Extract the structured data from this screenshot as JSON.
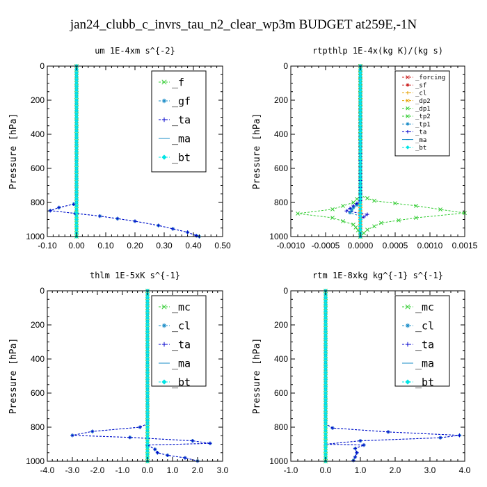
{
  "figure": {
    "title": "jan24_clubb_c_invrs_tau_n2_clear_wp3m  BUDGET at259E,-1N"
  },
  "chart_data": [
    {
      "type": "line",
      "title": "um  1E-4xm s^{-2}",
      "ylabel": "Pressure [hPa]",
      "xlim": [
        -0.1,
        0.5
      ],
      "ylim": [
        1000,
        0
      ],
      "xticks": [
        "-0.10",
        "0.00",
        "0.10",
        "0.20",
        "0.30",
        "0.40",
        "0.50"
      ],
      "xtick_values": [
        -0.1,
        0.0,
        0.1,
        0.2,
        0.3,
        0.4,
        0.5
      ],
      "yticks": [
        "0",
        "200",
        "400",
        "600",
        "800",
        "1000"
      ],
      "ytick_values": [
        0,
        200,
        400,
        600,
        800,
        1000
      ],
      "legend_position": "top-right",
      "legend_size": "large",
      "series": [
        {
          "name": "_f",
          "color": "#33cc33",
          "marker": "x",
          "points": [
            [
              0.0,
              0
            ],
            [
              0.0,
              100
            ],
            [
              0.0,
              200
            ],
            [
              0.0,
              300
            ],
            [
              0.0,
              400
            ],
            [
              0.0,
              500
            ],
            [
              0.0,
              600
            ],
            [
              0.0,
              700
            ],
            [
              0.0,
              800
            ],
            [
              0.0,
              900
            ],
            [
              0.0,
              1000
            ]
          ]
        },
        {
          "name": "_gf",
          "color": "#1a8cc7",
          "marker": "star",
          "points": [
            [
              0.0,
              0
            ],
            [
              0.0,
              500
            ],
            [
              0.0,
              800
            ],
            [
              -0.01,
              810
            ],
            [
              -0.06,
              830
            ],
            [
              -0.09,
              848
            ],
            [
              0.08,
              880
            ],
            [
              0.2,
              910
            ],
            [
              0.28,
              935
            ],
            [
              0.33,
              955
            ],
            [
              0.38,
              975
            ],
            [
              0.41,
              995
            ],
            [
              0.42,
              1000
            ]
          ]
        },
        {
          "name": "_ta",
          "color": "#0000cc",
          "marker": "plus",
          "points": [
            [
              0.0,
              0
            ],
            [
              0.0,
              500
            ],
            [
              0.0,
              800
            ],
            [
              -0.01,
              810
            ],
            [
              -0.06,
              830
            ],
            [
              -0.09,
              848
            ],
            [
              0.08,
              880
            ],
            [
              0.2,
              910
            ],
            [
              0.28,
              935
            ],
            [
              0.33,
              955
            ],
            [
              0.38,
              975
            ],
            [
              0.41,
              995
            ],
            [
              0.42,
              1000
            ]
          ]
        },
        {
          "name": "_ma",
          "color": "#1a8cc7",
          "marker": "dash",
          "points": [
            [
              0.0,
              0
            ],
            [
              0.0,
              1000
            ]
          ]
        },
        {
          "name": "_bt",
          "color": "#00e5e5",
          "marker": "diamond",
          "points": [
            [
              0.0,
              0
            ],
            [
              0.0,
              1000
            ]
          ]
        }
      ]
    },
    {
      "type": "line",
      "title": "rtpthlp  1E-4x(kg K)/(kg s)",
      "ylabel": "Pressure [hPa]",
      "xlim": [
        -0.001,
        0.0015
      ],
      "ylim": [
        1000,
        0
      ],
      "xticks": [
        "-0.0010",
        "-0.0005",
        "0.0000",
        "0.0005",
        "0.0010",
        "0.0015"
      ],
      "xtick_values": [
        -0.001,
        -0.0005,
        0.0,
        0.0005,
        0.001,
        0.0015
      ],
      "yticks": [
        "0",
        "200",
        "400",
        "600",
        "800",
        "1000"
      ],
      "ytick_values": [
        0,
        200,
        400,
        600,
        800,
        1000
      ],
      "legend_position": "top-right",
      "legend_size": "small",
      "series": [
        {
          "name": "_forcing",
          "color": "#cc2222",
          "marker": "x",
          "points": [
            [
              0.0,
              0
            ],
            [
              0.0,
              1000
            ]
          ]
        },
        {
          "name": "_sf",
          "color": "#cc2222",
          "marker": "star",
          "points": [
            [
              0.0,
              0
            ],
            [
              0.0,
              1000
            ]
          ]
        },
        {
          "name": "_cl",
          "color": "#e5a000",
          "marker": "plus",
          "points": [
            [
              0.0,
              0
            ],
            [
              0.0,
              1000
            ]
          ]
        },
        {
          "name": "_dp2",
          "color": "#e5a000",
          "marker": "x",
          "points": [
            [
              0.0,
              0
            ],
            [
              0.0,
              1000
            ]
          ]
        },
        {
          "name": "_dp1",
          "color": "#33cc33",
          "marker": "x",
          "points": [
            [
              0.0,
              0
            ],
            [
              0.0,
              760
            ],
            [
              -0.0001,
              800
            ],
            [
              -0.0004,
              840
            ],
            [
              -0.0009,
              865
            ],
            [
              -0.0004,
              890
            ],
            [
              -0.0001,
              930
            ],
            [
              0.0,
              980
            ],
            [
              0.0,
              1000
            ]
          ]
        },
        {
          "name": "_tp2",
          "color": "#33cc33",
          "marker": "x",
          "points": [
            [
              0.0,
              0
            ],
            [
              0.0,
              760
            ],
            [
              0.0002,
              790
            ],
            [
              0.0008,
              820
            ],
            [
              0.0015,
              862
            ],
            [
              0.0008,
              890
            ],
            [
              0.0003,
              920
            ],
            [
              0.0001,
              960
            ],
            [
              0.0,
              1000
            ]
          ]
        },
        {
          "name": "_tp1",
          "color": "#1a8cc7",
          "marker": "star",
          "points": [
            [
              0.0,
              0
            ],
            [
              0.0,
              800
            ],
            [
              -0.0001,
              830
            ],
            [
              -0.00015,
              860
            ],
            [
              0.0,
              880
            ],
            [
              0.0,
              1000
            ]
          ]
        },
        {
          "name": "_ta",
          "color": "#0000cc",
          "marker": "plus",
          "points": [
            [
              0.0,
              0
            ],
            [
              0.0,
              790
            ],
            [
              -0.0001,
              820
            ],
            [
              -0.0002,
              850
            ],
            [
              0.0001,
              870
            ],
            [
              0.0,
              900
            ],
            [
              0.0,
              1000
            ]
          ]
        },
        {
          "name": "_ma",
          "color": "#1a8cc7",
          "marker": "dash",
          "points": [
            [
              0.0,
              0
            ],
            [
              0.0,
              1000
            ]
          ]
        },
        {
          "name": "_bt",
          "color": "#00e5e5",
          "marker": "diamond",
          "points": [
            [
              0.0,
              0
            ],
            [
              0.0,
              1000
            ]
          ]
        }
      ]
    },
    {
      "type": "line",
      "title": "thlm  1E-5xK s^{-1}",
      "ylabel": "Pressure [hPa]",
      "xlim": [
        -4.0,
        3.0
      ],
      "ylim": [
        1000,
        0
      ],
      "xticks": [
        "-4.0",
        "-3.0",
        "-2.0",
        "-1.0",
        "0.0",
        "1.0",
        "2.0",
        "3.0"
      ],
      "xtick_values": [
        -4.0,
        -3.0,
        -2.0,
        -1.0,
        0.0,
        1.0,
        2.0,
        3.0
      ],
      "yticks": [
        "0",
        "200",
        "400",
        "600",
        "800",
        "1000"
      ],
      "ytick_values": [
        0,
        200,
        400,
        600,
        800,
        1000
      ],
      "legend_position": "top-right",
      "legend_size": "large",
      "series": [
        {
          "name": "_mc",
          "color": "#33cc33",
          "marker": "x",
          "points": [
            [
              0.0,
              0
            ],
            [
              0.0,
              500
            ],
            [
              0.0,
              1000
            ]
          ]
        },
        {
          "name": "_cl",
          "color": "#1a8cc7",
          "marker": "star",
          "points": [
            [
              0.0,
              0
            ],
            [
              0.0,
              780
            ],
            [
              -0.3,
              800
            ],
            [
              -2.2,
              825
            ],
            [
              -3.0,
              848
            ],
            [
              -0.7,
              860
            ],
            [
              1.8,
              880
            ],
            [
              2.5,
              895
            ],
            [
              0.0,
              905
            ],
            [
              0.3,
              930
            ],
            [
              0.4,
              950
            ],
            [
              0.8,
              965
            ],
            [
              1.5,
              980
            ],
            [
              2.0,
              998
            ]
          ]
        },
        {
          "name": "_ta",
          "color": "#0000cc",
          "marker": "plus",
          "points": [
            [
              0.0,
              0
            ],
            [
              0.0,
              780
            ],
            [
              -0.3,
              800
            ],
            [
              -2.2,
              825
            ],
            [
              -3.0,
              848
            ],
            [
              -0.7,
              860
            ],
            [
              1.8,
              880
            ],
            [
              2.5,
              895
            ],
            [
              0.0,
              905
            ],
            [
              0.3,
              930
            ],
            [
              0.4,
              950
            ],
            [
              0.8,
              965
            ],
            [
              1.5,
              980
            ],
            [
              2.0,
              998
            ]
          ]
        },
        {
          "name": "_ma",
          "color": "#1a8cc7",
          "marker": "dash",
          "points": [
            [
              0.0,
              0
            ],
            [
              0.0,
              1000
            ]
          ]
        },
        {
          "name": "_bt",
          "color": "#00e5e5",
          "marker": "diamond",
          "points": [
            [
              0.0,
              0
            ],
            [
              0.0,
              1000
            ]
          ]
        }
      ]
    },
    {
      "type": "line",
      "title": "rtm  1E-8xkg kg^{-1} s^{-1}",
      "ylabel": "Pressure [hPa]",
      "xlim": [
        -1.0,
        4.0
      ],
      "ylim": [
        1000,
        0
      ],
      "xticks": [
        "-1.0",
        "0.0",
        "1.0",
        "2.0",
        "3.0",
        "4.0"
      ],
      "xtick_values": [
        -1.0,
        0.0,
        1.0,
        2.0,
        3.0,
        4.0
      ],
      "yticks": [
        "0",
        "200",
        "400",
        "600",
        "800",
        "1000"
      ],
      "ytick_values": [
        0,
        200,
        400,
        600,
        800,
        1000
      ],
      "legend_position": "top-right",
      "legend_size": "large",
      "series": [
        {
          "name": "_mc",
          "color": "#33cc33",
          "marker": "x",
          "points": [
            [
              0.0,
              0
            ],
            [
              0.0,
              500
            ],
            [
              0.0,
              1000
            ]
          ]
        },
        {
          "name": "_cl",
          "color": "#1a8cc7",
          "marker": "star",
          "points": [
            [
              0.0,
              0
            ],
            [
              0.0,
              780
            ],
            [
              0.2,
              805
            ],
            [
              1.8,
              828
            ],
            [
              3.85,
              848
            ],
            [
              3.3,
              862
            ],
            [
              1.0,
              880
            ],
            [
              0.0,
              900
            ],
            [
              1.1,
              905
            ],
            [
              0.85,
              925
            ],
            [
              0.9,
              950
            ],
            [
              0.85,
              975
            ],
            [
              0.8,
              995
            ]
          ]
        },
        {
          "name": "_ta",
          "color": "#0000cc",
          "marker": "plus",
          "points": [
            [
              0.0,
              0
            ],
            [
              0.0,
              780
            ],
            [
              0.2,
              805
            ],
            [
              1.8,
              828
            ],
            [
              3.85,
              848
            ],
            [
              3.3,
              862
            ],
            [
              1.0,
              880
            ],
            [
              0.0,
              900
            ],
            [
              1.1,
              905
            ],
            [
              0.85,
              925
            ],
            [
              0.9,
              950
            ],
            [
              0.85,
              975
            ],
            [
              0.8,
              995
            ]
          ]
        },
        {
          "name": "_ma",
          "color": "#1a8cc7",
          "marker": "dash",
          "points": [
            [
              0.0,
              0
            ],
            [
              0.0,
              1000
            ]
          ]
        },
        {
          "name": "_bt",
          "color": "#00e5e5",
          "marker": "diamond",
          "points": [
            [
              0.0,
              0
            ],
            [
              0.0,
              1000
            ]
          ]
        }
      ]
    }
  ]
}
